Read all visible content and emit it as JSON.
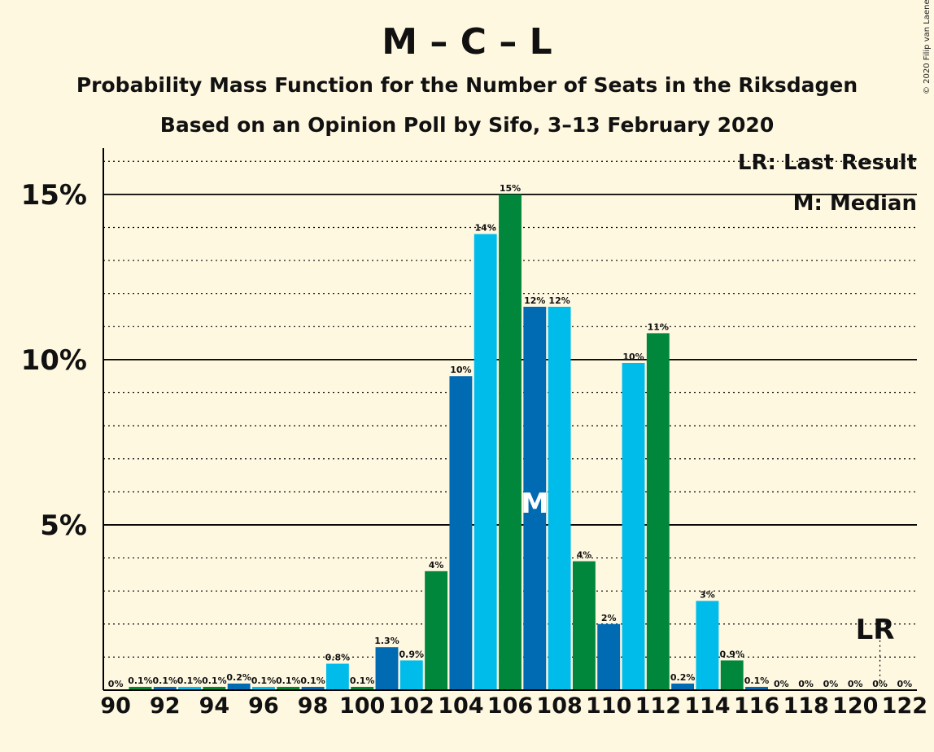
{
  "title": "M – C – L",
  "subtitle1": "Probability Mass Function for the Number of Seats in the Riksdagen",
  "subtitle2": "Based on an Opinion Poll by Sifo, 3–13 February 2020",
  "copyright": "© 2020 Filip van Laenen",
  "legend": {
    "last_result": "LR: Last Result",
    "median": "M: Median"
  },
  "median_marker": "M",
  "last_result_marker": "LR",
  "colors": {
    "background": "#FFF8E1",
    "dark_blue": "#006AB3",
    "light_blue": "#00BCEB",
    "green": "#00873C"
  },
  "chart_data": {
    "type": "bar",
    "x": [
      90,
      91,
      92,
      93,
      94,
      95,
      96,
      97,
      98,
      99,
      100,
      101,
      102,
      103,
      104,
      105,
      106,
      107,
      108,
      109,
      110,
      111,
      112,
      113,
      114,
      115,
      116,
      117,
      118,
      119,
      120,
      121,
      122
    ],
    "values": [
      0,
      0.1,
      0.1,
      0.1,
      0.1,
      0.2,
      0.1,
      0.1,
      0.1,
      0.8,
      0.1,
      1.3,
      0.9,
      3.6,
      9.5,
      13.8,
      15.0,
      11.6,
      11.6,
      3.9,
      2.0,
      9.9,
      10.8,
      0.2,
      2.7,
      0.9,
      0.1,
      0,
      0,
      0,
      0,
      0,
      0
    ],
    "labels": [
      "0%",
      "0.1%",
      "0.1%",
      "0.1%",
      "0.1%",
      "0.2%",
      "0.1%",
      "0.1%",
      "0.1%",
      "0.8%",
      "0.1%",
      "1.3%",
      "0.9%",
      "4%",
      "10%",
      "14%",
      "15%",
      "12%",
      "12%",
      "4%",
      "2%",
      "10%",
      "11%",
      "0.2%",
      "3%",
      "0.9%",
      "0.1%",
      "0%",
      "0%",
      "0%",
      "0%",
      "0%",
      "0%"
    ],
    "bar_colors": [
      "light_blue",
      "green",
      "dark_blue",
      "light_blue",
      "green",
      "dark_blue",
      "light_blue",
      "green",
      "dark_blue",
      "light_blue",
      "green",
      "dark_blue",
      "light_blue",
      "green",
      "dark_blue",
      "light_blue",
      "green",
      "dark_blue",
      "light_blue",
      "green",
      "dark_blue",
      "light_blue",
      "green",
      "dark_blue",
      "light_blue",
      "green",
      "dark_blue",
      "light_blue",
      "green",
      "dark_blue",
      "light_blue",
      "green",
      "dark_blue"
    ],
    "x_tick_labels": [
      "90",
      "92",
      "94",
      "96",
      "98",
      "100",
      "102",
      "104",
      "106",
      "108",
      "110",
      "112",
      "114",
      "116",
      "118",
      "120",
      "122"
    ],
    "y_tick_labels": [
      "5%",
      "10%",
      "15%"
    ],
    "y_ticks": [
      5,
      10,
      15
    ],
    "ylim": [
      0,
      16.4
    ],
    "median": 107,
    "last_result": 121
  }
}
